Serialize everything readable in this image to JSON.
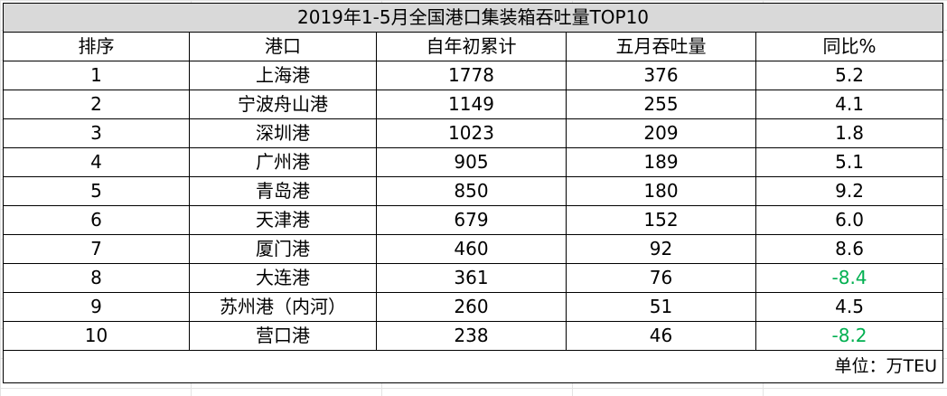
{
  "title": "2019年1-5月全国港口集装箱吞吐量TOP10",
  "headers": [
    "排序",
    "港口",
    "自年初累计",
    "五月吞吐量",
    "同比%"
  ],
  "rows": [
    {
      "rank": "1",
      "port": "上海港",
      "ytd": "1778",
      "may": "376",
      "yoy": "5.2",
      "negative": false
    },
    {
      "rank": "2",
      "port": "宁波舟山港",
      "ytd": "1149",
      "may": "255",
      "yoy": "4.1",
      "negative": false
    },
    {
      "rank": "3",
      "port": "深圳港",
      "ytd": "1023",
      "may": "209",
      "yoy": "1.8",
      "negative": false
    },
    {
      "rank": "4",
      "port": "广州港",
      "ytd": "905",
      "may": "189",
      "yoy": "5.1",
      "negative": false
    },
    {
      "rank": "5",
      "port": "青岛港",
      "ytd": "850",
      "may": "180",
      "yoy": "9.2",
      "negative": false
    },
    {
      "rank": "6",
      "port": "天津港",
      "ytd": "679",
      "may": "152",
      "yoy": "6.0",
      "negative": false
    },
    {
      "rank": "7",
      "port": "厦门港",
      "ytd": "460",
      "may": "92",
      "yoy": "8.6",
      "negative": false
    },
    {
      "rank": "8",
      "port": "大连港",
      "ytd": "361",
      "may": "76",
      "yoy": "-8.4",
      "negative": true
    },
    {
      "rank": "9",
      "port": "苏州港（内河）",
      "ytd": "260",
      "may": "51",
      "yoy": "4.5",
      "negative": false
    },
    {
      "rank": "10",
      "port": "营口港",
      "ytd": "238",
      "may": "46",
      "yoy": "-8.2",
      "negative": true
    }
  ],
  "unit_note": "单位：万TEU",
  "colors": {
    "header_bg": "#d9d9d9",
    "negative_text": "#00b050",
    "border": "#000000"
  }
}
